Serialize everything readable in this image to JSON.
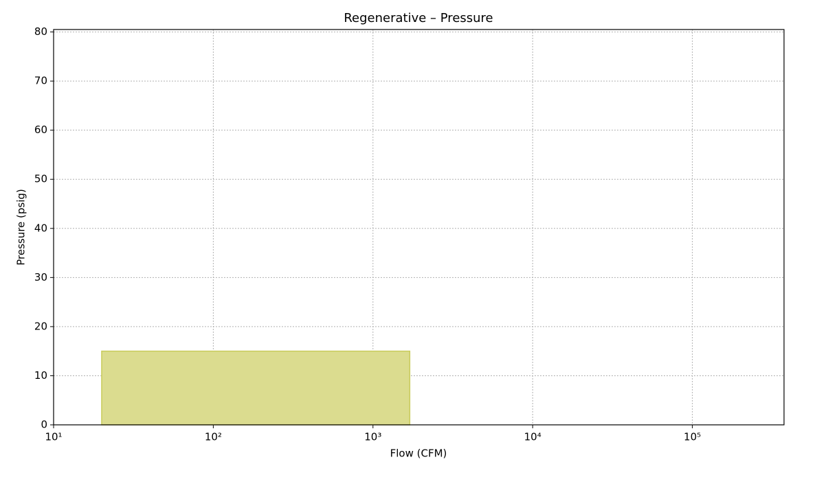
{
  "chart_data": {
    "type": "area",
    "title": "Regenerative – Pressure",
    "x_label": "Flow (CFM)",
    "y_label": "Pressure (psig)",
    "x": [
      20,
      1700
    ],
    "values": [
      15,
      15
    ],
    "color": "#dbdc8f",
    "edge_color": "#c9cb5c",
    "xscale": "log",
    "xlim": [
      10,
      375000
    ],
    "ylim": [
      0,
      80.5
    ],
    "xticks": [
      {
        "value": 10,
        "label": "10¹"
      },
      {
        "value": 100,
        "label": "10²"
      },
      {
        "value": 1000,
        "label": "10³"
      },
      {
        "value": 10000,
        "label": "10⁴"
      },
      {
        "value": 100000,
        "label": "10⁵"
      }
    ],
    "yticks": [
      0,
      10,
      20,
      30,
      40,
      50,
      60,
      70,
      80
    ],
    "grid": true
  }
}
